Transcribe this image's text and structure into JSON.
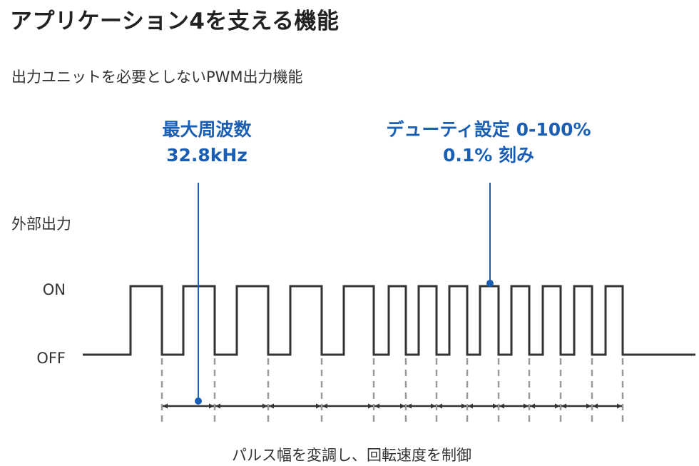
{
  "title": "アプリケーション4を支える機能",
  "subtitle": "出力ユニットを必要としないPWM出力機能",
  "colors": {
    "accent": "#1a5fb4",
    "signal": "#333333",
    "guide": "#9a9a9a",
    "text": "#333333"
  },
  "annotations": {
    "frequency": {
      "line1": "最大周波数",
      "line2": "32.8kHz"
    },
    "duty": {
      "line1": "デューティ設定 0-100%",
      "line2": "0.1% 刻み"
    }
  },
  "axis": {
    "name": "外部出力",
    "on_label": "ON",
    "off_label": "OFF"
  },
  "caption": "パルス幅を変調し、回転速度を制御"
}
